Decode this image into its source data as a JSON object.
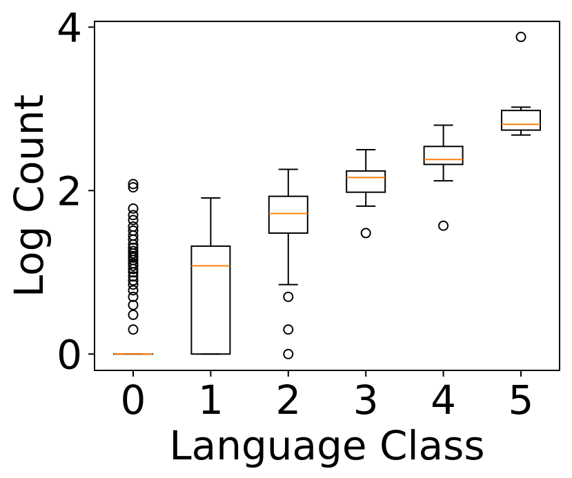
{
  "chart_data": {
    "type": "box",
    "xlabel": "Language Class",
    "ylabel": "Log Count",
    "ylim": [
      -0.2,
      4.07
    ],
    "yticks": [
      0,
      2,
      4
    ],
    "categories": [
      "0",
      "1",
      "2",
      "3",
      "4",
      "5"
    ],
    "boxes": [
      {
        "category": "0",
        "whisker_low": 0.0,
        "q1": 0.0,
        "median": 0.0,
        "q3": 0.0,
        "whisker_high": 0.0,
        "outliers": [
          0.3,
          0.48,
          0.6,
          0.7,
          0.78,
          0.85,
          0.9,
          0.95,
          1.0,
          1.04,
          1.08,
          1.11,
          1.15,
          1.18,
          1.2,
          1.23,
          1.26,
          1.3,
          1.34,
          1.4,
          1.45,
          1.51,
          1.56,
          1.64,
          1.7,
          1.78,
          2.04,
          2.08
        ]
      },
      {
        "category": "1",
        "whisker_low": 0.0,
        "q1": 0.0,
        "median": 1.08,
        "q3": 1.32,
        "whisker_high": 1.91,
        "outliers": []
      },
      {
        "category": "2",
        "whisker_low": 0.85,
        "q1": 1.48,
        "median": 1.72,
        "q3": 1.93,
        "whisker_high": 2.26,
        "outliers": [
          0.0,
          0.3,
          0.7
        ]
      },
      {
        "category": "3",
        "whisker_low": 1.81,
        "q1": 1.98,
        "median": 2.16,
        "q3": 2.24,
        "whisker_high": 2.5,
        "outliers": [
          1.48
        ]
      },
      {
        "category": "4",
        "whisker_low": 2.12,
        "q1": 2.32,
        "median": 2.38,
        "q3": 2.54,
        "whisker_high": 2.8,
        "outliers": [
          1.57
        ]
      },
      {
        "category": "5",
        "whisker_low": 2.68,
        "q1": 2.74,
        "median": 2.81,
        "q3": 2.98,
        "whisker_high": 3.02,
        "outliers": [
          3.88
        ]
      }
    ],
    "colors": {
      "box": "#000000",
      "median": "#ff7f0e",
      "outlier": "#000000"
    },
    "grid": false,
    "legend": "none"
  }
}
